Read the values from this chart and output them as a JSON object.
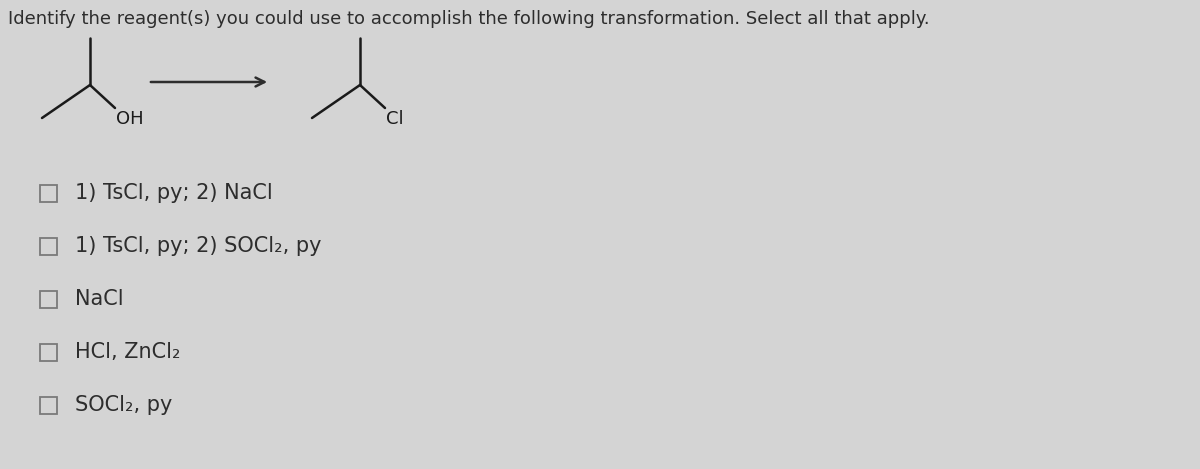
{
  "title": "Identify the reagent(s) you could use to accomplish the following transformation. Select all that apply.",
  "title_fontsize": 13.0,
  "title_color": "#2d2d2d",
  "bg_color": "#d4d4d4",
  "options": [
    "1) TsCl, py; 2) NaCl",
    "1) TsCl, py; 2) SOCl₂, py",
    "NaCl",
    "HCl, ZnCl₂",
    "SOCl₂, py"
  ],
  "option_fontsize": 15,
  "option_color": "#2d2d2d",
  "checkbox_color": "#7a7a7a",
  "arrow_color": "#2d2d2d",
  "molecule_color": "#1a1a1a"
}
